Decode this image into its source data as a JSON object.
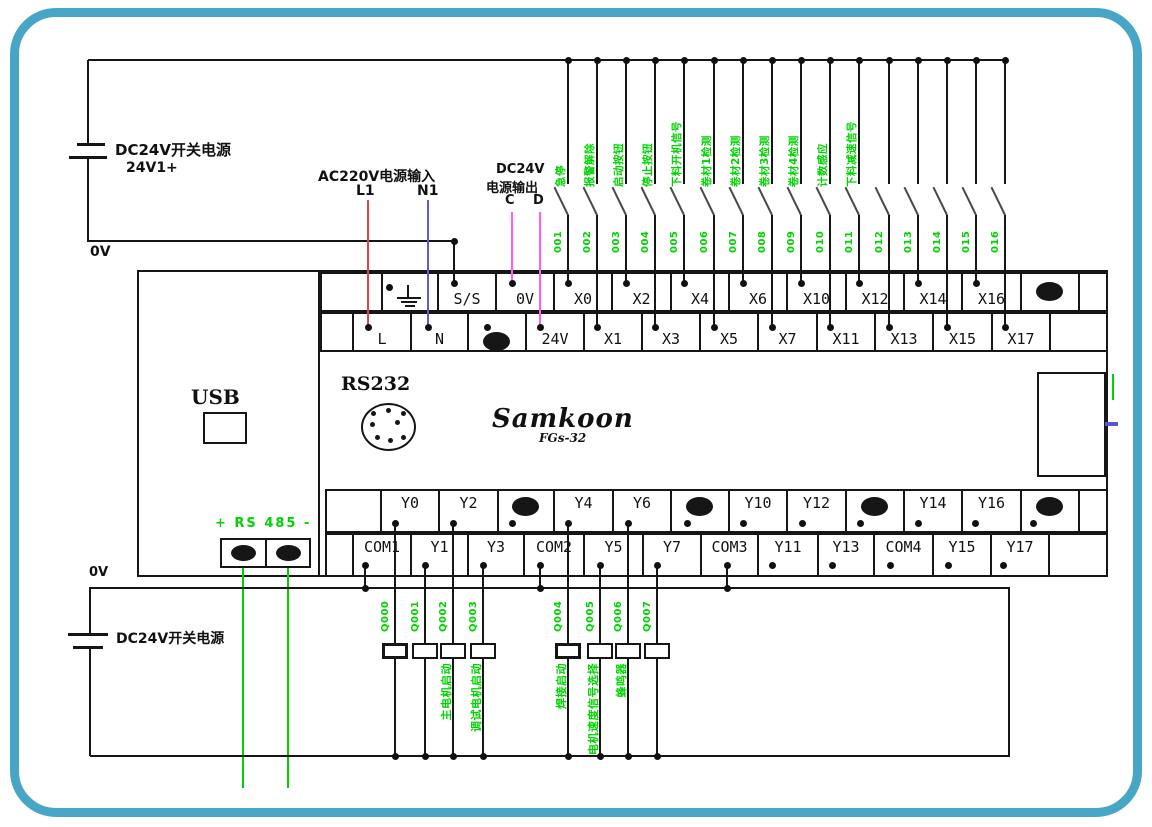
{
  "colors": {
    "frame_teal": "#47A5C5",
    "wire_green": "#00d400",
    "wire_red": "#e04545",
    "wire_blue": "#5b5bdc",
    "wire_magenta": "#ff5cff"
  },
  "top": {
    "supply_label": "DC24V开关电源",
    "supply_sub": "24V1+",
    "zero_v": "0V",
    "ac_title": "AC220V电源输入",
    "l1": "L1",
    "n1": "N1",
    "dc_title1": "DC24V",
    "dc_title2": "电源输出",
    "c": "C",
    "d": "D"
  },
  "inputs": [
    {
      "num": "001",
      "label": "急停"
    },
    {
      "num": "002",
      "label": "报警解除"
    },
    {
      "num": "003",
      "label": "启动按钮"
    },
    {
      "num": "004",
      "label": "停止按钮"
    },
    {
      "num": "005",
      "label": "下料开机信号"
    },
    {
      "num": "006",
      "label": "卷材1检测"
    },
    {
      "num": "007",
      "label": "卷材2检测"
    },
    {
      "num": "008",
      "label": "卷材3检测"
    },
    {
      "num": "009",
      "label": "卷材4检测"
    },
    {
      "num": "010",
      "label": "计数感应"
    },
    {
      "num": "011",
      "label": "下料减速信号"
    },
    {
      "num": "012",
      "label": ""
    },
    {
      "num": "013",
      "label": ""
    },
    {
      "num": "014",
      "label": ""
    },
    {
      "num": "015",
      "label": ""
    },
    {
      "num": "016",
      "label": ""
    }
  ],
  "plc": {
    "usb": "USB",
    "rs232": "RS232",
    "brand": "Samkoon",
    "model": "FGs-32",
    "rs485": "+ RS 485 -",
    "input_row_top": [
      "",
      "",
      "S/S",
      "0V",
      "X0",
      "X2",
      "X4",
      "X6",
      "X10",
      "X12",
      "X14",
      "X16",
      "",
      ""
    ],
    "input_row_bottom": [
      "",
      "L",
      "N",
      "",
      "24V",
      "X1",
      "X3",
      "X5",
      "X7",
      "X11",
      "X13",
      "X15",
      "X17",
      ""
    ],
    "output_row_top": [
      "",
      "Y0",
      "Y2",
      "",
      "Y4",
      "Y6",
      "",
      "Y10",
      "Y12",
      "",
      "Y14",
      "Y16",
      "",
      ""
    ],
    "output_row_bottom": [
      "",
      "COM1",
      "Y1",
      "Y3",
      "COM2",
      "Y5",
      "Y7",
      "COM3",
      "Y11",
      "Y13",
      "COM4",
      "Y15",
      "Y17",
      ""
    ]
  },
  "outputs": [
    {
      "num": "Q000",
      "label": ""
    },
    {
      "num": "Q001",
      "label": ""
    },
    {
      "num": "Q002",
      "label": "主电机启动"
    },
    {
      "num": "Q003",
      "label": "调试电机启动"
    },
    {
      "num": "Q004",
      "label": "焊接启动"
    },
    {
      "num": "Q005",
      "label": "电机速度信号选择"
    },
    {
      "num": "Q006",
      "label": "蜂鸣器"
    },
    {
      "num": "Q007",
      "label": ""
    }
  ],
  "bottom": {
    "supply_label": "DC24V开关电源",
    "zero_v": "0V"
  }
}
